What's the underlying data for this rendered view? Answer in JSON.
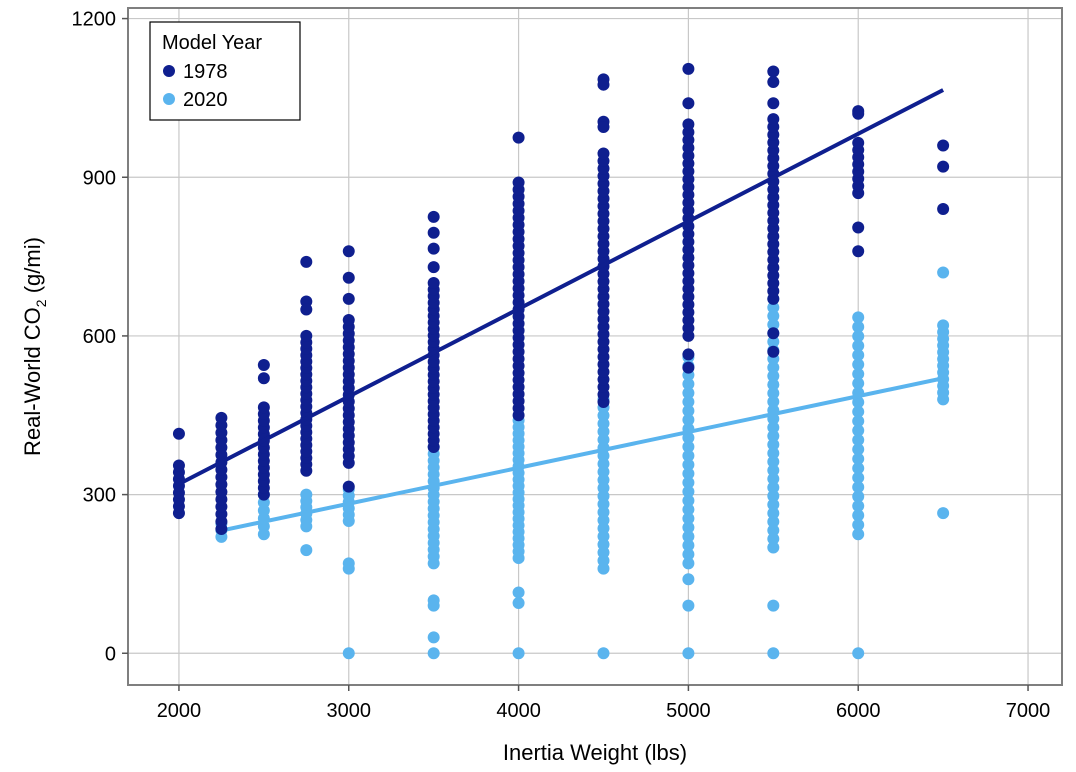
{
  "chart_data": {
    "type": "scatter",
    "xlabel": "Inertia Weight (lbs)",
    "ylabel_main": "Real-World CO",
    "ylabel_sub": "2",
    "ylabel_unit": " (g/mi)",
    "xlim": [
      1700,
      7200
    ],
    "ylim": [
      -60,
      1220
    ],
    "xticks": [
      2000,
      3000,
      4000,
      5000,
      6000,
      7000
    ],
    "xtick_labels": [
      "2000",
      "3000",
      "4000",
      "5000",
      "6000",
      "7000"
    ],
    "yticks": [
      0,
      300,
      600,
      900,
      1200
    ],
    "ytick_labels": [
      "0",
      "300",
      "600",
      "900",
      "1200"
    ],
    "grid": true,
    "legend_position": "top-left",
    "legend": {
      "title": "Model Year",
      "entries": [
        "1978",
        "2020"
      ]
    },
    "series": [
      {
        "name": "1978",
        "color": "#0f1f8f",
        "trend": {
          "x": [
            2000,
            6500
          ],
          "y": [
            320,
            1065
          ]
        },
        "points": [
          {
            "x": 2000,
            "ymin": 265,
            "ymax": 355,
            "n": 8,
            "extra": [
              415
            ]
          },
          {
            "x": 2250,
            "ymin": 235,
            "ymax": 445,
            "n": 16,
            "extra": []
          },
          {
            "x": 2500,
            "ymin": 300,
            "ymax": 465,
            "n": 14,
            "extra": [
              545,
              520
            ]
          },
          {
            "x": 2750,
            "ymin": 345,
            "ymax": 600,
            "n": 22,
            "extra": [
              740,
              665,
              650
            ]
          },
          {
            "x": 3000,
            "ymin": 360,
            "ymax": 630,
            "n": 22,
            "extra": [
              760,
              710,
              670,
              315
            ]
          },
          {
            "x": 3500,
            "ymin": 390,
            "ymax": 700,
            "n": 26,
            "extra": [
              825,
              795,
              765,
              730
            ]
          },
          {
            "x": 4000,
            "ymin": 450,
            "ymax": 890,
            "n": 34,
            "extra": [
              975
            ]
          },
          {
            "x": 4500,
            "ymin": 475,
            "ymax": 945,
            "n": 34,
            "extra": [
              1085,
              1075,
              1005,
              995
            ]
          },
          {
            "x": 5000,
            "ymin": 600,
            "ymax": 1000,
            "n": 28,
            "extra": [
              1105,
              1040,
              565,
              540
            ]
          },
          {
            "x": 5500,
            "ymin": 670,
            "ymax": 1010,
            "n": 24,
            "extra": [
              1100,
              1080,
              1040,
              605,
              570
            ]
          },
          {
            "x": 6000,
            "ymin": 870,
            "ymax": 965,
            "n": 8,
            "extra": [
              1025,
              1020,
              805,
              760
            ]
          },
          {
            "x": 6500,
            "ymin": 920,
            "ymax": 960,
            "n": 2,
            "extra": [
              840
            ]
          }
        ]
      },
      {
        "name": "2020",
        "color": "#5ab4ee",
        "trend": {
          "x": [
            2250,
            6500
          ],
          "y": [
            232,
            520
          ]
        },
        "points": [
          {
            "x": 2250,
            "ymin": 220,
            "ymax": 245,
            "n": 3,
            "extra": []
          },
          {
            "x": 2500,
            "ymin": 225,
            "ymax": 300,
            "n": 6,
            "extra": []
          },
          {
            "x": 2750,
            "ymin": 240,
            "ymax": 300,
            "n": 6,
            "extra": [
              195
            ]
          },
          {
            "x": 3000,
            "ymin": 250,
            "ymax": 310,
            "n": 6,
            "extra": [
              170,
              160,
              0
            ]
          },
          {
            "x": 3500,
            "ymin": 170,
            "ymax": 390,
            "n": 18,
            "extra": [
              100,
              90,
              30,
              0
            ]
          },
          {
            "x": 4000,
            "ymin": 180,
            "ymax": 440,
            "n": 22,
            "extra": [
              115,
              95,
              0
            ]
          },
          {
            "x": 4500,
            "ymin": 160,
            "ymax": 480,
            "n": 22,
            "extra": [
              0
            ]
          },
          {
            "x": 5000,
            "ymin": 170,
            "ymax": 560,
            "n": 24,
            "extra": [
              140,
              90,
              0
            ]
          },
          {
            "x": 5500,
            "ymin": 200,
            "ymax": 670,
            "n": 30,
            "extra": [
              90,
              0
            ]
          },
          {
            "x": 6000,
            "ymin": 225,
            "ymax": 635,
            "n": 24,
            "extra": [
              0
            ]
          },
          {
            "x": 6500,
            "ymin": 480,
            "ymax": 620,
            "n": 12,
            "extra": [
              720,
              265
            ]
          }
        ]
      }
    ]
  }
}
